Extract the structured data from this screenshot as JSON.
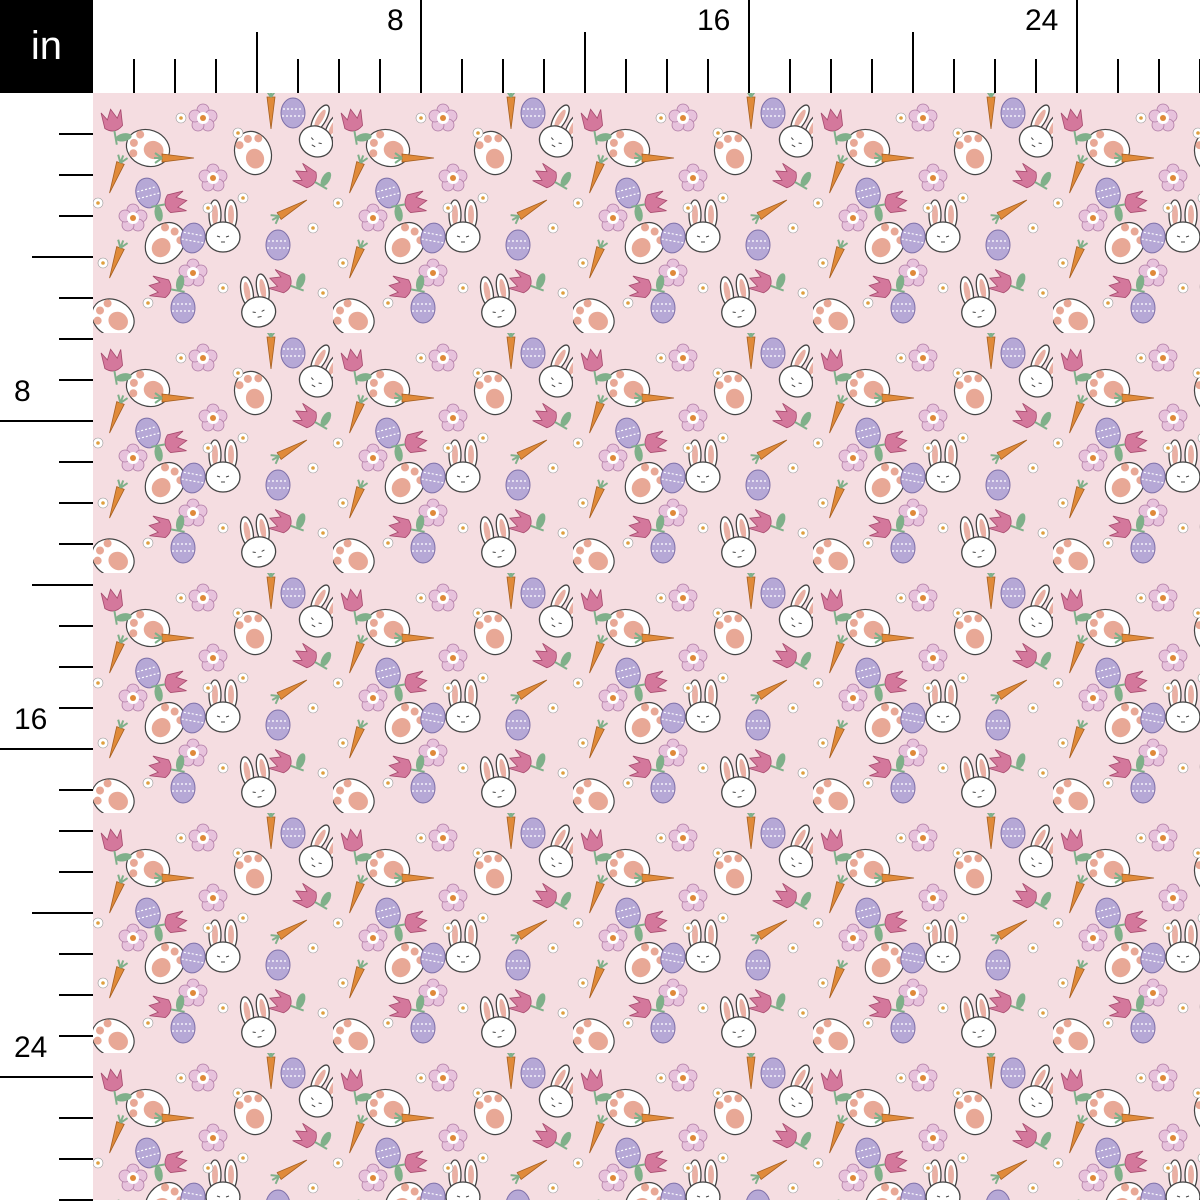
{
  "unit_label": "in",
  "top_ruler": {
    "labels": [
      "8",
      "16",
      "24"
    ]
  },
  "left_ruler": {
    "labels": [
      "8",
      "16",
      "24"
    ]
  },
  "fabric": {
    "background": "#f5dde1",
    "motifs": [
      "bunny-face",
      "bunny-paw",
      "carrot",
      "easter-egg",
      "tulip",
      "daisy-flower",
      "small-flower"
    ],
    "colors": {
      "pink": "#d4789c",
      "orange": "#e08a3a",
      "lavender": "#b6a8d6",
      "green": "#7fb08a",
      "peach": "#e8a896",
      "white": "#ffffff"
    }
  }
}
